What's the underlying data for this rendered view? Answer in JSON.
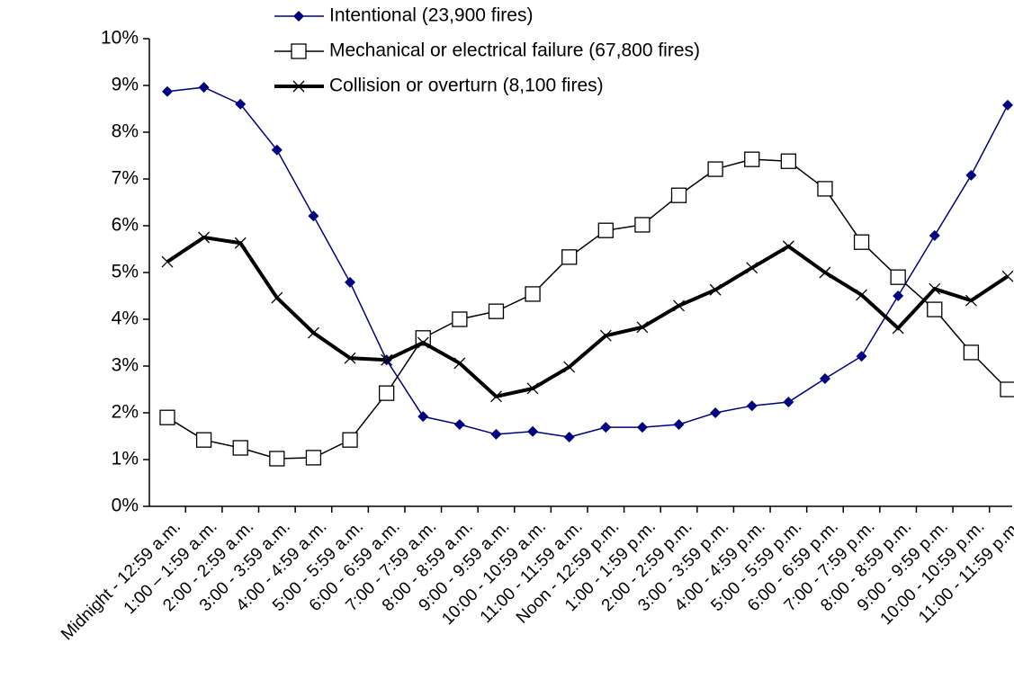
{
  "chart_data": {
    "type": "line",
    "categories": [
      "Midnight - 12:59 a.m.",
      "1:00 – 1:59 a.m.",
      "2:00 - 2:59 a.m.",
      "3:00 - 3:59 a.m.",
      "4:00 - 4:59 a.m.",
      "5:00 - 5:59 a.m.",
      "6:00 - 6:59 a.m.",
      "7:00 - 7:59 a.m.",
      "8:00 - 8:59 a.m.",
      "9:00 - 9:59 a.m.",
      "10:00 - 10:59 a.m.",
      "11:00 - 11:59 a.m.",
      "Noon - 12:59 p.m.",
      "1:00 - 1:59 p.m.",
      "2:00 - 2:59 p.m.",
      "3:00 - 3:59 p.m.",
      "4:00 - 4:59 p.m.",
      "5:00 - 5:59 p.m.",
      "6:00 - 6:59 p.m.",
      "7:00 - 7:59 p.m.",
      "8:00 - 8:59 p.m.",
      "9:00 - 9:59 p.m.",
      "10:00 - 10:59 p.m.",
      "11:00 - 11:59 p.m."
    ],
    "series": [
      {
        "name": "Intentional (23,900 fires)",
        "color": "#000080",
        "marker": "diamond",
        "values": [
          8.87,
          8.96,
          8.6,
          7.62,
          6.21,
          4.79,
          3.13,
          1.92,
          1.75,
          1.54,
          1.6,
          1.48,
          1.69,
          1.69,
          1.75,
          2.0,
          2.15,
          2.23,
          2.73,
          3.21,
          4.5,
          5.79,
          7.08,
          8.58
        ]
      },
      {
        "name": "Mechanical or electrical failure (67,800 fires)",
        "color": "#000000",
        "marker": "square",
        "values": [
          1.9,
          1.42,
          1.25,
          1.02,
          1.04,
          1.42,
          2.42,
          3.6,
          4.0,
          4.17,
          4.54,
          5.33,
          5.9,
          6.02,
          6.65,
          7.21,
          7.42,
          7.38,
          6.79,
          5.65,
          4.9,
          4.21,
          3.29,
          2.5
        ]
      },
      {
        "name": "Collision or overturn (8,100 fires)",
        "color": "#000000",
        "marker": "x",
        "values": [
          5.23,
          5.75,
          5.63,
          4.46,
          3.71,
          3.17,
          3.13,
          3.5,
          3.06,
          2.35,
          2.52,
          2.98,
          3.65,
          3.83,
          4.29,
          4.63,
          5.1,
          5.56,
          5.0,
          4.52,
          3.81,
          4.65,
          4.4,
          4.92
        ]
      }
    ],
    "ylim": [
      0,
      10
    ],
    "yticks": [
      {
        "value": 0,
        "label": "0%"
      },
      {
        "value": 1,
        "label": "1%"
      },
      {
        "value": 2,
        "label": "2%"
      },
      {
        "value": 3,
        "label": "3%"
      },
      {
        "value": 4,
        "label": "4%"
      },
      {
        "value": 5,
        "label": "5%"
      },
      {
        "value": 6,
        "label": "6%"
      },
      {
        "value": 7,
        "label": "7%"
      },
      {
        "value": 8,
        "label": "8%"
      },
      {
        "value": 9,
        "label": "9%"
      },
      {
        "value": 10,
        "label": "10%"
      }
    ],
    "grid": false,
    "legend": "top"
  }
}
